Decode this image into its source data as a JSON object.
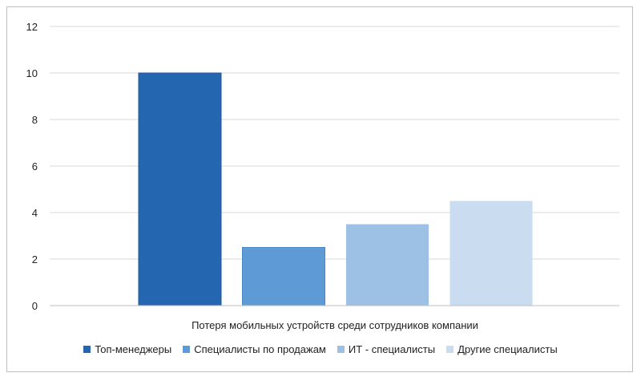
{
  "chart_data": {
    "type": "bar",
    "categories": [
      "Потеря мобильных устройств среди сотрудников компании"
    ],
    "series": [
      {
        "name": "Топ-менеджеры",
        "values": [
          10
        ],
        "color": "#2566b0"
      },
      {
        "name": "Специалисты по продажам",
        "values": [
          2.5
        ],
        "color": "#5e9bd6"
      },
      {
        "name": "ИТ - специалисты",
        "values": [
          3.5
        ],
        "color": "#9dc1e5"
      },
      {
        "name": "Другие специалисты",
        "values": [
          4.5
        ],
        "color": "#c9dcf0"
      }
    ],
    "ylim": [
      0,
      12
    ],
    "yticks": [
      "0",
      "2",
      "4",
      "6",
      "8",
      "10",
      "12"
    ],
    "grid": true,
    "legend": "bottom"
  }
}
